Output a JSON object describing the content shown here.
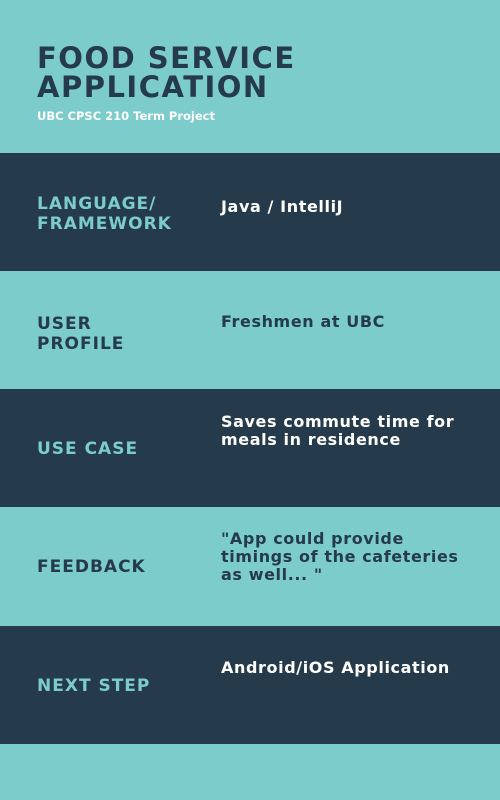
{
  "header": {
    "title": "FOOD SERVICE APPLICATION",
    "subtitle": "UBC CPSC 210 Term Project"
  },
  "rows": [
    {
      "label": "LANGUAGE/\nFRAMEWORK",
      "value": "Java / IntelliJ"
    },
    {
      "label": "USER\nPROFILE",
      "value": "Freshmen at UBC"
    },
    {
      "label": "USE CASE",
      "value": "Saves commute time for meals in residence"
    },
    {
      "label": "FEEDBACK",
      "value": "\"App could provide timings of the cafeteries as well... \""
    },
    {
      "label": "NEXT STEP",
      "value": "Android/iOS Application"
    }
  ],
  "colors": {
    "light": "#7ccccc",
    "dark": "#253a4b",
    "white": "#ffffff"
  }
}
